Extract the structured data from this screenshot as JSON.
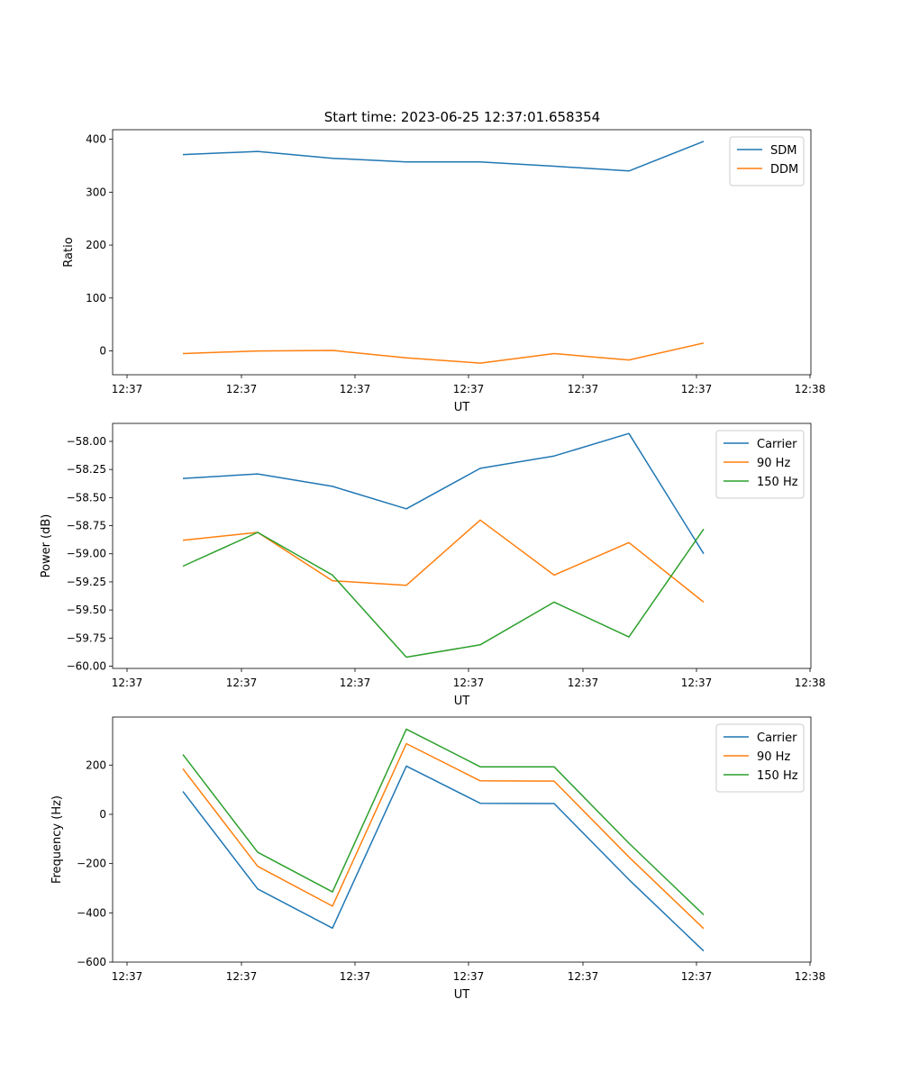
{
  "figure_title": "Start time: 2023-06-25 12:37:01.658354",
  "colors": {
    "blue": "#1f77b4",
    "orange": "#ff7f0e",
    "green": "#2ca02c"
  },
  "chart_data": [
    {
      "type": "line",
      "title": "Start time: 2023-06-25 12:37:01.658354",
      "xlabel": "UT",
      "ylabel": "Ratio",
      "x_tick_labels": [
        "12:37",
        "12:37",
        "12:37",
        "12:37",
        "12:37",
        "12:37",
        "12:38"
      ],
      "y_ticks": [
        0,
        100,
        200,
        300,
        400
      ],
      "y_tick_labels": [
        "0",
        "100",
        "200",
        "300",
        "400"
      ],
      "ylim": [
        -45,
        418
      ],
      "legend_position": "top-right",
      "series": [
        {
          "name": "SDM",
          "color": "#1f77b4",
          "values": [
            371,
            377,
            364,
            357,
            357,
            349,
            340,
            396
          ]
        },
        {
          "name": "DDM",
          "color": "#ff7f0e",
          "values": [
            -5,
            0,
            1,
            -13,
            -23,
            -5,
            -17,
            15
          ]
        }
      ]
    },
    {
      "type": "line",
      "title": "",
      "xlabel": "UT",
      "ylabel": "Power (dB)",
      "x_tick_labels": [
        "12:37",
        "12:37",
        "12:37",
        "12:37",
        "12:37",
        "12:37",
        "12:38"
      ],
      "y_ticks": [
        -60.0,
        -59.75,
        -59.5,
        -59.25,
        -59.0,
        -58.75,
        -58.5,
        -58.25,
        -58.0
      ],
      "y_tick_labels": [
        "−60.00",
        "−59.75",
        "−59.50",
        "−59.25",
        "−59.00",
        "−58.75",
        "−58.50",
        "−58.25",
        "−58.00"
      ],
      "ylim": [
        -60.02,
        -57.84
      ],
      "legend_position": "top-right",
      "series": [
        {
          "name": "Carrier",
          "color": "#1f77b4",
          "values": [
            -58.33,
            -58.29,
            -58.4,
            -58.6,
            -58.24,
            -58.13,
            -57.93,
            -59.0
          ]
        },
        {
          "name": "90 Hz",
          "color": "#ff7f0e",
          "values": [
            -58.88,
            -58.81,
            -59.24,
            -59.28,
            -58.7,
            -59.19,
            -58.9,
            -59.43
          ]
        },
        {
          "name": "150 Hz",
          "color": "#2ca02c",
          "values": [
            -59.11,
            -58.81,
            -59.19,
            -59.92,
            -59.81,
            -59.43,
            -59.74,
            -58.78
          ]
        }
      ]
    },
    {
      "type": "line",
      "title": "",
      "xlabel": "UT",
      "ylabel": "Frequency (Hz)",
      "x_tick_labels": [
        "12:37",
        "12:37",
        "12:37",
        "12:37",
        "12:37",
        "12:37",
        "12:38"
      ],
      "y_ticks": [
        -600,
        -400,
        -200,
        0,
        200
      ],
      "y_tick_labels": [
        "−600",
        "−400",
        "−200",
        "0",
        "200"
      ],
      "ylim": [
        -600,
        395
      ],
      "legend_position": "top-right",
      "series": [
        {
          "name": "Carrier",
          "color": "#1f77b4",
          "values": [
            93,
            -303,
            -462,
            196,
            45,
            44,
            -265,
            -555
          ]
        },
        {
          "name": "90 Hz",
          "color": "#ff7f0e",
          "values": [
            185,
            -211,
            -373,
            287,
            136,
            135,
            -173,
            -464
          ]
        },
        {
          "name": "150 Hz",
          "color": "#2ca02c",
          "values": [
            243,
            -154,
            -315,
            346,
            193,
            193,
            -117,
            -408
          ]
        }
      ]
    }
  ]
}
